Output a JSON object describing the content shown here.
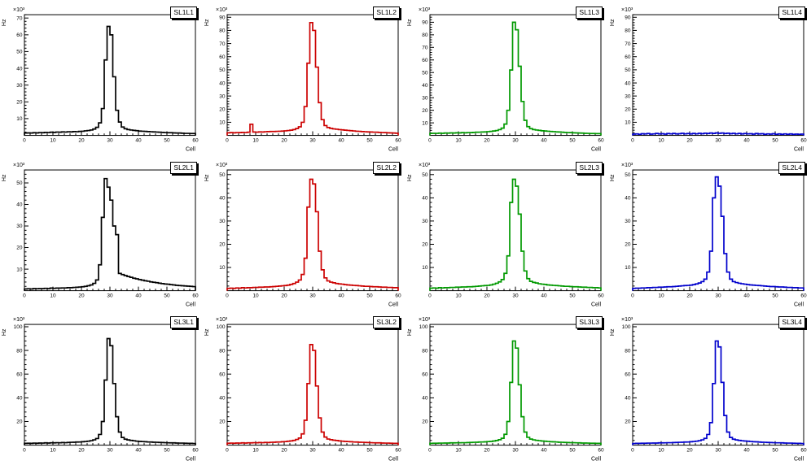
{
  "page": {
    "background": "#ffffff"
  },
  "chart_data": [
    {
      "type": "bar",
      "style": "step-outline-histogram",
      "title": "SL1L1",
      "color": "#000000",
      "xlabel": "Cell",
      "ylabel": "Hz",
      "y_exponent": "×10³",
      "xlim": [
        0,
        60
      ],
      "ylim": [
        0,
        72
      ],
      "xtick_step": 10,
      "ytick_step": 10,
      "bin_width": 1,
      "values": [
        1.4,
        1.5,
        1.4,
        1.6,
        1.5,
        1.7,
        1.6,
        1.8,
        1.7,
        1.9,
        1.8,
        2.0,
        1.9,
        2.1,
        2.0,
        2.2,
        2.1,
        2.3,
        2.2,
        2.4,
        2.5,
        2.7,
        2.9,
        3.2,
        3.8,
        4.8,
        7.5,
        16,
        45,
        65,
        60,
        35,
        15,
        8,
        5,
        4,
        3.5,
        3.2,
        3.0,
        2.8,
        2.6,
        2.5,
        2.4,
        2.3,
        2.2,
        2.1,
        2.0,
        1.9,
        1.8,
        1.7,
        1.6,
        1.6,
        1.5,
        1.4,
        1.4,
        1.3,
        1.2,
        1.2,
        1.1,
        1.1
      ]
    },
    {
      "type": "bar",
      "style": "step-outline-histogram",
      "title": "SL1L2",
      "color": "#cc0000",
      "xlabel": "Cell",
      "ylabel": "Hz",
      "y_exponent": "×10³",
      "xlim": [
        0,
        60
      ],
      "ylim": [
        0,
        92
      ],
      "xtick_step": 10,
      "ytick_step": 10,
      "bin_width": 1,
      "values": [
        2.0,
        2.1,
        2.0,
        2.2,
        2.1,
        2.3,
        2.2,
        2.4,
        8.5,
        2.6,
        2.5,
        2.7,
        2.6,
        2.8,
        2.9,
        3.0,
        3.0,
        3.1,
        3.2,
        3.3,
        3.5,
        3.7,
        4.0,
        4.5,
        5.2,
        6.5,
        10,
        22,
        55,
        86,
        80,
        52,
        25,
        12,
        7.5,
        6.0,
        5.4,
        5.0,
        4.7,
        4.4,
        4.2,
        4.0,
        3.8,
        3.6,
        3.4,
        3.2,
        3.1,
        2.9,
        2.8,
        2.7,
        2.6,
        2.5,
        2.4,
        2.3,
        2.2,
        2.1,
        2.0,
        1.9,
        1.8,
        1.7
      ]
    },
    {
      "type": "bar",
      "style": "step-outline-histogram",
      "title": "SL1L3",
      "color": "#009900",
      "xlabel": "Cell",
      "ylabel": "Hz",
      "y_exponent": "×10³",
      "xlim": [
        0,
        60
      ],
      "ylim": [
        0,
        96
      ],
      "xtick_step": 10,
      "ytick_step": 10,
      "bin_width": 1,
      "values": [
        1.6,
        1.7,
        1.6,
        1.8,
        1.7,
        1.9,
        1.8,
        2.0,
        1.9,
        2.1,
        2.0,
        2.2,
        2.1,
        2.3,
        2.2,
        2.4,
        2.5,
        2.6,
        2.7,
        2.8,
        3.0,
        3.2,
        3.5,
        3.9,
        4.6,
        5.8,
        9.0,
        20,
        52,
        90,
        84,
        55,
        27,
        12,
        7.0,
        5.4,
        4.7,
        4.3,
        4.0,
        3.7,
        3.5,
        3.3,
        3.1,
        3.0,
        2.8,
        2.7,
        2.5,
        2.4,
        2.3,
        2.2,
        2.1,
        2.0,
        1.9,
        1.8,
        1.7,
        1.6,
        1.5,
        1.5,
        1.4,
        1.4
      ]
    },
    {
      "type": "bar",
      "style": "step-outline-histogram",
      "title": "SL1L4",
      "color": "#0000cc",
      "xlabel": "Cell",
      "ylabel": "Hz",
      "y_exponent": "×10³",
      "xlim": [
        0,
        60
      ],
      "ylim": [
        0,
        92
      ],
      "xtick_step": 10,
      "ytick_step": 10,
      "bin_width": 1,
      "values": [
        1.0,
        1.2,
        0.9,
        1.3,
        1.1,
        1.4,
        1.0,
        1.2,
        1.5,
        1.1,
        1.3,
        1.0,
        1.4,
        1.2,
        1.5,
        1.1,
        1.3,
        1.6,
        1.2,
        1.4,
        1.1,
        1.5,
        1.2,
        1.6,
        1.3,
        1.7,
        1.4,
        1.8,
        1.5,
        1.9,
        1.6,
        1.8,
        1.4,
        1.7,
        1.3,
        1.6,
        1.2,
        1.5,
        1.1,
        1.4,
        1.2,
        1.3,
        1.0,
        1.4,
        1.1,
        1.3,
        0.9,
        1.2,
        1.0,
        1.3,
        0.9,
        1.1,
        0.8,
        1.2,
        0.9,
        1.1,
        0.8,
        1.0,
        0.9,
        1.0
      ]
    },
    {
      "type": "bar",
      "style": "step-outline-histogram",
      "title": "SL2L1",
      "color": "#000000",
      "xlabel": "Cell",
      "ylabel": "Hz",
      "y_exponent": "×10³",
      "xlim": [
        0,
        60
      ],
      "ylim": [
        0,
        56
      ],
      "xtick_step": 10,
      "ytick_step": 10,
      "bin_width": 1,
      "values": [
        0.8,
        0.9,
        0.8,
        1.0,
        0.9,
        1.0,
        1.0,
        1.1,
        1.0,
        1.2,
        1.1,
        1.2,
        1.2,
        1.3,
        1.3,
        1.4,
        1.4,
        1.5,
        1.6,
        1.7,
        1.8,
        2.0,
        2.3,
        2.7,
        3.4,
        5.0,
        12,
        34,
        52,
        48,
        42,
        30,
        26,
        8.0,
        7.5,
        7.0,
        6.6,
        6.2,
        5.8,
        5.5,
        5.2,
        4.9,
        4.6,
        4.4,
        4.1,
        3.9,
        3.7,
        3.5,
        3.3,
        3.1,
        3.0,
        2.8,
        2.7,
        2.5,
        2.4,
        2.3,
        2.2,
        2.1,
        2.0,
        1.9
      ]
    },
    {
      "type": "bar",
      "style": "step-outline-histogram",
      "title": "SL2L2",
      "color": "#cc0000",
      "xlabel": "Cell",
      "ylabel": "Hz",
      "y_exponent": "×10³",
      "xlim": [
        0,
        60
      ],
      "ylim": [
        0,
        52
      ],
      "xtick_step": 10,
      "ytick_step": 10,
      "bin_width": 1,
      "values": [
        1.0,
        1.1,
        1.0,
        1.2,
        1.1,
        1.3,
        1.2,
        1.3,
        1.3,
        1.4,
        1.4,
        1.5,
        1.5,
        1.6,
        1.6,
        1.7,
        1.8,
        1.9,
        2.0,
        2.1,
        2.2,
        2.4,
        2.7,
        3.1,
        3.7,
        4.6,
        7.0,
        14,
        36,
        48,
        46,
        34,
        17,
        9.0,
        5.5,
        4.2,
        3.7,
        3.4,
        3.1,
        2.9,
        2.8,
        2.6,
        2.5,
        2.4,
        2.3,
        2.2,
        2.1,
        2.0,
        1.9,
        1.9,
        1.8,
        1.7,
        1.7,
        1.6,
        1.5,
        1.5,
        1.4,
        1.4,
        1.3,
        1.3
      ]
    },
    {
      "type": "bar",
      "style": "step-outline-histogram",
      "title": "SL2L3",
      "color": "#009900",
      "xlabel": "Cell",
      "ylabel": "Hz",
      "y_exponent": "×10³",
      "xlim": [
        0,
        60
      ],
      "ylim": [
        0,
        52
      ],
      "xtick_step": 10,
      "ytick_step": 10,
      "bin_width": 1,
      "values": [
        1.1,
        1.2,
        1.1,
        1.3,
        1.2,
        1.3,
        1.3,
        1.4,
        1.4,
        1.5,
        1.5,
        1.6,
        1.6,
        1.7,
        1.7,
        1.8,
        1.9,
        2.0,
        2.1,
        2.2,
        2.3,
        2.5,
        2.8,
        3.2,
        3.8,
        4.8,
        7.5,
        15,
        38,
        48,
        45,
        33,
        17,
        8.5,
        5.2,
        4.0,
        3.6,
        3.3,
        3.0,
        2.8,
        2.7,
        2.5,
        2.4,
        2.3,
        2.2,
        2.1,
        2.0,
        1.9,
        1.9,
        1.8,
        1.7,
        1.7,
        1.6,
        1.5,
        1.5,
        1.4,
        1.4,
        1.3,
        1.3,
        1.2
      ]
    },
    {
      "type": "bar",
      "style": "step-outline-histogram",
      "title": "SL2L4",
      "color": "#0000cc",
      "xlabel": "Cell",
      "ylabel": "Hz",
      "y_exponent": "×10³",
      "xlim": [
        0,
        60
      ],
      "ylim": [
        0,
        52
      ],
      "xtick_step": 10,
      "ytick_step": 10,
      "bin_width": 1,
      "values": [
        1.0,
        1.1,
        1.1,
        1.2,
        1.2,
        1.3,
        1.3,
        1.4,
        1.4,
        1.5,
        1.5,
        1.6,
        1.7,
        1.7,
        1.8,
        1.9,
        2.0,
        2.1,
        2.2,
        2.3,
        2.4,
        2.6,
        2.9,
        3.3,
        3.9,
        5.0,
        8.0,
        17,
        40,
        49,
        45,
        32,
        16,
        8.0,
        5.0,
        3.9,
        3.5,
        3.2,
        3.0,
        2.8,
        2.6,
        2.5,
        2.4,
        2.3,
        2.2,
        2.1,
        2.0,
        1.9,
        1.8,
        1.8,
        1.7,
        1.6,
        1.6,
        1.5,
        1.4,
        1.4,
        1.3,
        1.3,
        1.2,
        1.2
      ]
    },
    {
      "type": "bar",
      "style": "step-outline-histogram",
      "title": "SL3L1",
      "color": "#000000",
      "xlabel": "Cell",
      "ylabel": "Hz",
      "y_exponent": "×10³",
      "xlim": [
        0,
        60
      ],
      "ylim": [
        0,
        102
      ],
      "xtick_step": 10,
      "ytick_step": 20,
      "bin_width": 1,
      "values": [
        1.5,
        1.6,
        1.5,
        1.7,
        1.6,
        1.8,
        1.7,
        1.9,
        1.8,
        2.0,
        1.9,
        2.1,
        2.0,
        2.2,
        2.1,
        2.3,
        2.4,
        2.5,
        2.6,
        2.7,
        2.9,
        3.1,
        3.4,
        3.8,
        4.5,
        5.6,
        9.0,
        20,
        55,
        90,
        84,
        52,
        24,
        11,
        6.5,
        5.0,
        4.4,
        4.0,
        3.7,
        3.4,
        3.2,
        3.0,
        2.9,
        2.7,
        2.6,
        2.5,
        2.4,
        2.3,
        2.2,
        2.1,
        2.0,
        1.9,
        1.9,
        1.8,
        1.7,
        1.7,
        1.6,
        1.5,
        1.5,
        1.4
      ]
    },
    {
      "type": "bar",
      "style": "step-outline-histogram",
      "title": "SL3L2",
      "color": "#cc0000",
      "xlabel": "Cell",
      "ylabel": "Hz",
      "y_exponent": "×10³",
      "xlim": [
        0,
        60
      ],
      "ylim": [
        0,
        102
      ],
      "xtick_step": 10,
      "ytick_step": 20,
      "bin_width": 1,
      "values": [
        1.6,
        1.7,
        1.6,
        1.8,
        1.7,
        1.9,
        1.8,
        2.0,
        1.9,
        2.1,
        2.0,
        2.2,
        2.1,
        2.3,
        2.2,
        2.4,
        2.5,
        2.6,
        2.7,
        2.9,
        3.0,
        3.3,
        3.6,
        4.0,
        4.8,
        6.0,
        9.5,
        21,
        52,
        85,
        80,
        50,
        23,
        11,
        6.8,
        5.2,
        4.6,
        4.2,
        3.9,
        3.6,
        3.4,
        3.2,
        3.0,
        2.9,
        2.7,
        2.6,
        2.5,
        2.4,
        2.3,
        2.2,
        2.1,
        2.0,
        1.9,
        1.9,
        1.8,
        1.7,
        1.7,
        1.6,
        1.5,
        1.5
      ]
    },
    {
      "type": "bar",
      "style": "step-outline-histogram",
      "title": "SL3L3",
      "color": "#009900",
      "xlabel": "Cell",
      "ylabel": "Hz",
      "y_exponent": "×10³",
      "xlim": [
        0,
        60
      ],
      "ylim": [
        0,
        102
      ],
      "xtick_step": 10,
      "ytick_step": 20,
      "bin_width": 1,
      "values": [
        1.5,
        1.6,
        1.6,
        1.7,
        1.7,
        1.8,
        1.8,
        1.9,
        1.9,
        2.0,
        2.0,
        2.1,
        2.1,
        2.2,
        2.3,
        2.4,
        2.5,
        2.6,
        2.7,
        2.8,
        3.0,
        3.2,
        3.5,
        3.9,
        4.6,
        5.8,
        9.2,
        20,
        53,
        88,
        82,
        51,
        24,
        11,
        6.6,
        5.1,
        4.5,
        4.1,
        3.8,
        3.5,
        3.3,
        3.1,
        2.9,
        2.8,
        2.7,
        2.5,
        2.4,
        2.3,
        2.2,
        2.1,
        2.1,
        2.0,
        1.9,
        1.8,
        1.8,
        1.7,
        1.6,
        1.6,
        1.5,
        1.5
      ]
    },
    {
      "type": "bar",
      "style": "step-outline-histogram",
      "title": "SL3L4",
      "color": "#0000cc",
      "xlabel": "Cell",
      "ylabel": "Hz",
      "y_exponent": "×10³",
      "xlim": [
        0,
        60
      ],
      "ylim": [
        0,
        102
      ],
      "xtick_step": 10,
      "ytick_step": 20,
      "bin_width": 1,
      "values": [
        1.4,
        1.5,
        1.5,
        1.6,
        1.6,
        1.7,
        1.7,
        1.8,
        1.8,
        1.9,
        1.9,
        2.0,
        2.1,
        2.1,
        2.2,
        2.3,
        2.4,
        2.5,
        2.6,
        2.7,
        2.9,
        3.1,
        3.4,
        3.8,
        4.5,
        5.7,
        9.0,
        19,
        52,
        88,
        83,
        53,
        25,
        11,
        6.5,
        5.0,
        4.4,
        4.0,
        3.7,
        3.5,
        3.3,
        3.1,
        2.9,
        2.8,
        2.6,
        2.5,
        2.4,
        2.3,
        2.2,
        2.1,
        2.0,
        2.0,
        1.9,
        1.8,
        1.7,
        1.7,
        1.6,
        1.5,
        1.5,
        1.4
      ]
    }
  ]
}
